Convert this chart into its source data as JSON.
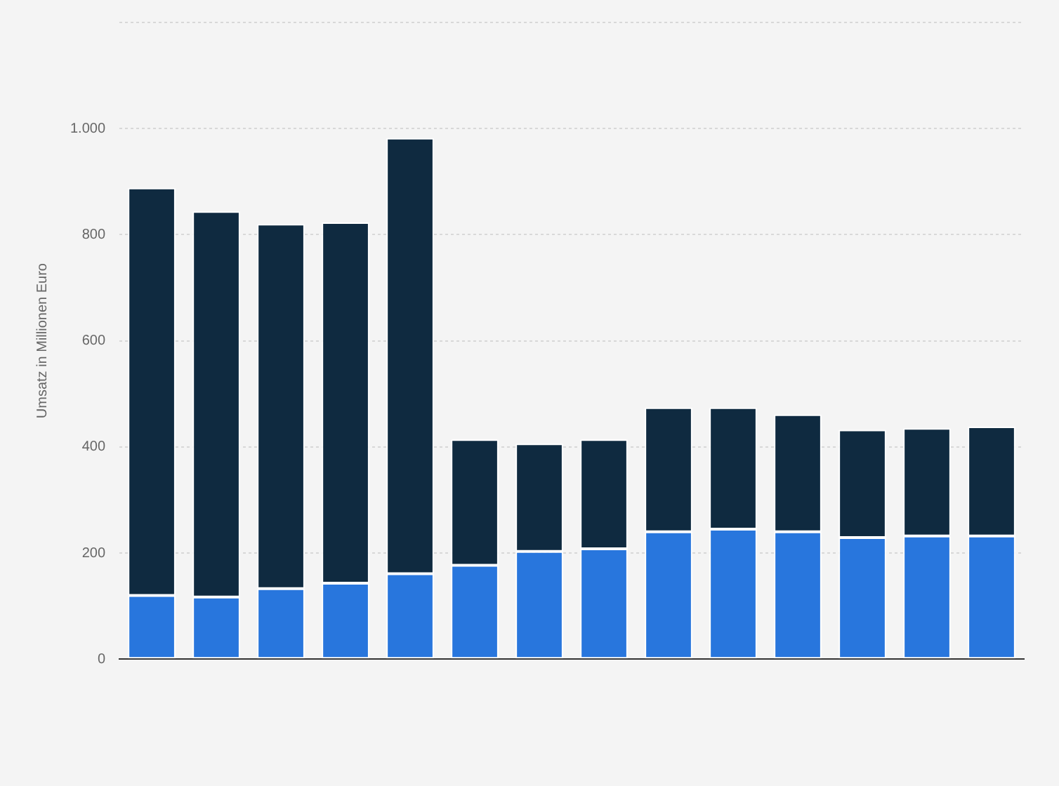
{
  "chart_data": {
    "type": "bar",
    "stacked": true,
    "ylabel": "Umsatz in Millionen Euro",
    "categories": [
      null,
      null,
      null,
      null,
      null,
      null,
      null,
      null,
      null,
      null,
      null,
      null,
      null,
      null
    ],
    "series": [
      {
        "color": "#2876dd",
        "values": [
          120,
          117,
          133,
          143,
          161,
          177,
          203,
          208,
          240,
          245,
          240,
          229,
          232,
          232
        ]
      },
      {
        "color": "#0f2a40",
        "values": [
          768,
          727,
          687,
          680,
          821,
          237,
          203,
          206,
          234,
          229,
          221,
          203,
          203,
          206
        ]
      }
    ],
    "ylim": [
      0,
      1200
    ],
    "yticks": [
      0,
      200,
      400,
      600,
      800,
      {
        "value": 1000,
        "label": "1.000"
      },
      {
        "value": 1200,
        "label": null
      }
    ],
    "grid": "y"
  }
}
